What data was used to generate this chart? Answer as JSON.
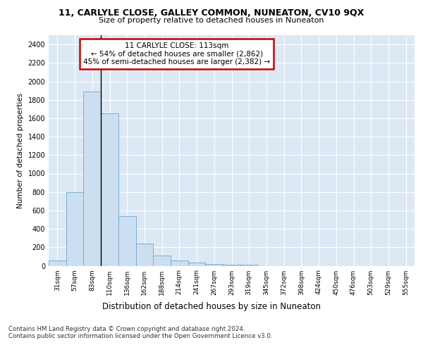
{
  "title1": "11, CARLYLE CLOSE, GALLEY COMMON, NUNEATON, CV10 9QX",
  "title2": "Size of property relative to detached houses in Nuneaton",
  "xlabel": "Distribution of detached houses by size in Nuneaton",
  "ylabel": "Number of detached properties",
  "bar_labels": [
    "31sqm",
    "57sqm",
    "83sqm",
    "110sqm",
    "136sqm",
    "162sqm",
    "188sqm",
    "214sqm",
    "241sqm",
    "267sqm",
    "293sqm",
    "319sqm",
    "345sqm",
    "372sqm",
    "398sqm",
    "424sqm",
    "450sqm",
    "476sqm",
    "503sqm",
    "529sqm",
    "555sqm"
  ],
  "bar_values": [
    55,
    800,
    1890,
    1650,
    535,
    240,
    110,
    55,
    35,
    20,
    10,
    15,
    0,
    0,
    0,
    0,
    0,
    0,
    0,
    0,
    0
  ],
  "bar_color": "#ccdff0",
  "bar_edge_color": "#7aadd4",
  "highlight_bar_index": 3,
  "highlight_line_color": "#000000",
  "annotation_line1": "11 CARLYLE CLOSE: 113sqm",
  "annotation_line2": "← 54% of detached houses are smaller (2,862)",
  "annotation_line3": "45% of semi-detached houses are larger (2,382) →",
  "annotation_box_color": "#cc0000",
  "annotation_bg_color": "#ffffff",
  "ylim": [
    0,
    2500
  ],
  "yticks": [
    0,
    200,
    400,
    600,
    800,
    1000,
    1200,
    1400,
    1600,
    1800,
    2000,
    2200,
    2400
  ],
  "plot_bg_color": "#dce9f5",
  "footer1": "Contains HM Land Registry data © Crown copyright and database right 2024.",
  "footer2": "Contains public sector information licensed under the Open Government Licence v3.0."
}
